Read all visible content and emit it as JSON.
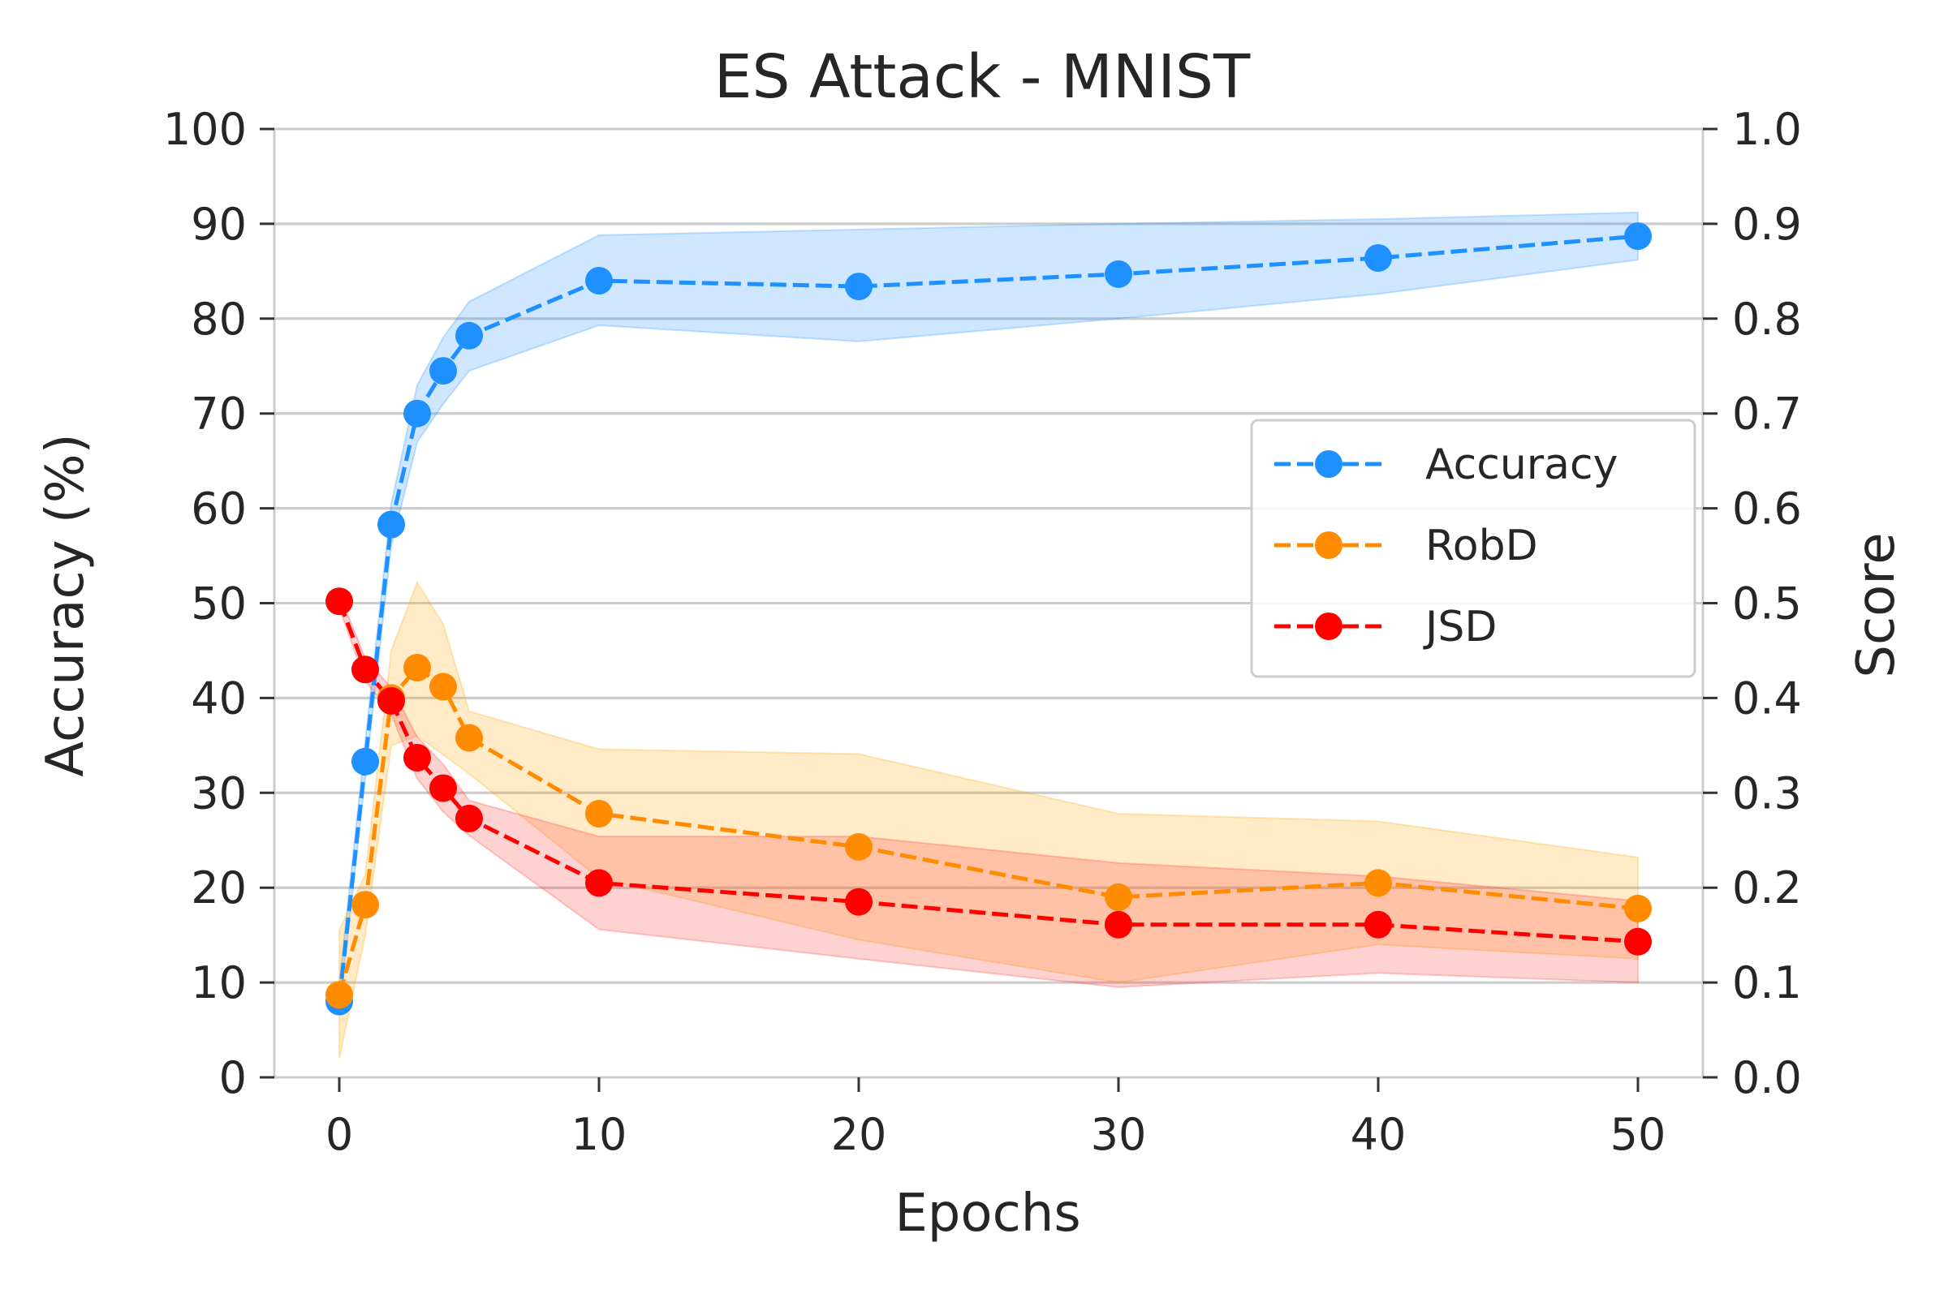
{
  "chart_data": {
    "type": "line",
    "title": "ES Attack - MNIST",
    "xlabel": "Epochs",
    "ylabel_left": "Accuracy (%)",
    "ylabel_right": "Score",
    "xlim": [
      -2.5,
      52.5
    ],
    "ylim_left": [
      0,
      100
    ],
    "ylim_right": [
      0.0,
      1.0
    ],
    "x_ticks": [
      0,
      10,
      20,
      30,
      40,
      50
    ],
    "x_tick_labels": [
      "0",
      "10",
      "20",
      "30",
      "40",
      "50"
    ],
    "y_left_ticks": [
      0,
      10,
      20,
      30,
      40,
      50,
      60,
      70,
      80,
      90,
      100
    ],
    "y_left_tick_labels": [
      "0",
      "10",
      "20",
      "30",
      "40",
      "50",
      "60",
      "70",
      "80",
      "90",
      "100"
    ],
    "y_right_ticks": [
      0.0,
      0.1,
      0.2,
      0.3,
      0.4,
      0.5,
      0.6,
      0.7,
      0.8,
      0.9,
      1.0
    ],
    "y_right_tick_labels": [
      "0.0",
      "0.1",
      "0.2",
      "0.3",
      "0.4",
      "0.5",
      "0.6",
      "0.7",
      "0.8",
      "0.9",
      "1.0"
    ],
    "grid": true,
    "legend_position": "center-right",
    "x": [
      0,
      1,
      2,
      3,
      4,
      5,
      10,
      20,
      30,
      40,
      50
    ],
    "series": [
      {
        "name": "Accuracy",
        "axis": "left",
        "color": "#1E90FF",
        "fill_color": "#1E90FF",
        "values": [
          8.0,
          33.3,
          58.3,
          70.0,
          74.5,
          78.2,
          84.0,
          83.4,
          84.7,
          86.4,
          88.7
        ],
        "lower": [
          7.0,
          31.5,
          56.0,
          67.0,
          71.0,
          74.5,
          79.3,
          77.6,
          80.0,
          82.6,
          86.2
        ],
        "upper": [
          10.0,
          35.5,
          60.5,
          73.0,
          78.0,
          81.8,
          88.8,
          89.4,
          90.0,
          90.5,
          91.2
        ]
      },
      {
        "name": "RobD",
        "axis": "right",
        "color": "#FF8C00",
        "fill_color": "#FFA500",
        "values": [
          0.087,
          0.182,
          0.4,
          0.432,
          0.412,
          0.358,
          0.278,
          0.243,
          0.19,
          0.205,
          0.178
        ],
        "lower": [
          0.02,
          0.15,
          0.35,
          0.36,
          0.34,
          0.32,
          0.21,
          0.145,
          0.1,
          0.14,
          0.125
        ],
        "upper": [
          0.155,
          0.214,
          0.45,
          0.522,
          0.478,
          0.386,
          0.346,
          0.341,
          0.278,
          0.27,
          0.232
        ]
      },
      {
        "name": "JSD",
        "axis": "right",
        "color": "#FF0000",
        "fill_color": "#FF3333",
        "values": [
          0.502,
          0.43,
          0.397,
          0.337,
          0.305,
          0.273,
          0.205,
          0.185,
          0.161,
          0.161,
          0.143
        ],
        "lower": [
          0.495,
          0.418,
          0.383,
          0.315,
          0.28,
          0.255,
          0.156,
          0.125,
          0.095,
          0.11,
          0.1
        ],
        "upper": [
          0.51,
          0.442,
          0.411,
          0.359,
          0.33,
          0.292,
          0.254,
          0.254,
          0.226,
          0.212,
          0.186
        ]
      }
    ]
  }
}
